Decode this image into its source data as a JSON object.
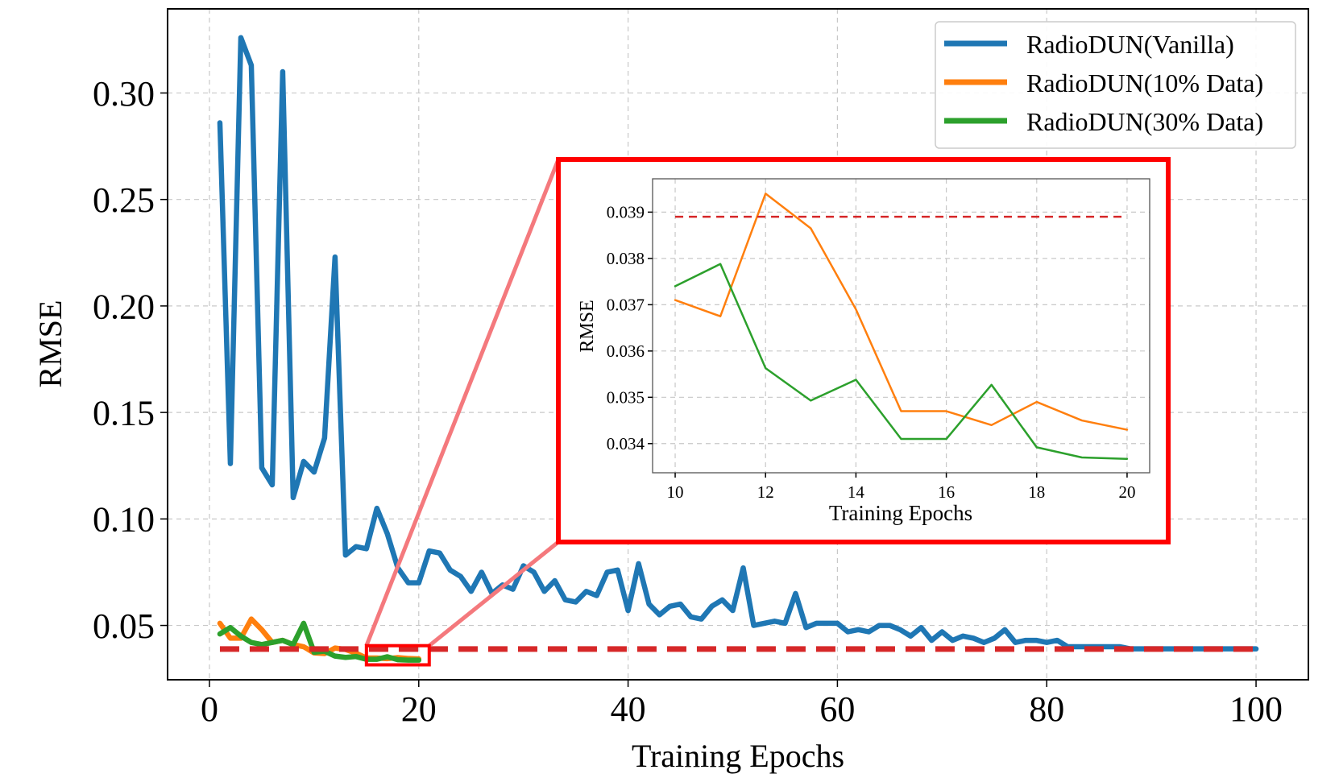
{
  "colors": {
    "vanilla": "#1f77b4",
    "p10": "#ff7f0e",
    "p30": "#2ca02c",
    "reference": "#d62728",
    "zoom_box": "#ff0000",
    "connector": "#f4797d",
    "grid": "#c8c8c8"
  },
  "chart_data": [
    {
      "type": "line",
      "id": "main",
      "xlabel": "Training Epochs",
      "ylabel": "RMSE",
      "xlim": [
        -4,
        105
      ],
      "ylim": [
        0.0245,
        0.3395
      ],
      "xticks": [
        0,
        20,
        40,
        60,
        80,
        100
      ],
      "xtick_labels": [
        "0",
        "20",
        "40",
        "60",
        "80",
        "100"
      ],
      "yticks": [
        0.05,
        0.1,
        0.15,
        0.2,
        0.25,
        0.3
      ],
      "ytick_labels": [
        "0.05",
        "0.10",
        "0.15",
        "0.20",
        "0.25",
        "0.30"
      ],
      "grid": true,
      "legend_position": "top-right",
      "reference_line": {
        "y": 0.0389,
        "x": [
          1,
          100
        ],
        "style": "dashed"
      },
      "zoom_region": {
        "x": [
          15,
          21
        ],
        "y": [
          0.0315,
          0.0405
        ]
      },
      "series": [
        {
          "name": "RadioDUN(Vanilla)",
          "key": "vanilla",
          "x": [
            1,
            2,
            3,
            4,
            5,
            6,
            7,
            8,
            9,
            10,
            11,
            12,
            13,
            14,
            15,
            16,
            17,
            18,
            19,
            20,
            21,
            22,
            23,
            24,
            25,
            26,
            27,
            28,
            29,
            30,
            31,
            32,
            33,
            34,
            35,
            36,
            37,
            38,
            39,
            40,
            41,
            42,
            43,
            44,
            45,
            46,
            47,
            48,
            49,
            50,
            51,
            52,
            53,
            54,
            55,
            56,
            57,
            58,
            59,
            60,
            61,
            62,
            63,
            64,
            65,
            66,
            67,
            68,
            69,
            70,
            71,
            72,
            73,
            74,
            75,
            76,
            77,
            78,
            79,
            80,
            81,
            82,
            83,
            84,
            85,
            86,
            87,
            88,
            89,
            90,
            91,
            92,
            93,
            94,
            95,
            96,
            97,
            98,
            99,
            100
          ],
          "values": [
            0.286,
            0.126,
            0.326,
            0.313,
            0.124,
            0.116,
            0.31,
            0.11,
            0.127,
            0.122,
            0.138,
            0.223,
            0.083,
            0.087,
            0.086,
            0.105,
            0.093,
            0.077,
            0.07,
            0.07,
            0.085,
            0.084,
            0.076,
            0.073,
            0.066,
            0.075,
            0.065,
            0.069,
            0.067,
            0.078,
            0.075,
            0.066,
            0.071,
            0.062,
            0.061,
            0.066,
            0.064,
            0.075,
            0.076,
            0.057,
            0.079,
            0.06,
            0.055,
            0.059,
            0.06,
            0.054,
            0.053,
            0.059,
            0.062,
            0.057,
            0.077,
            0.05,
            0.051,
            0.052,
            0.051,
            0.065,
            0.049,
            0.051,
            0.051,
            0.051,
            0.047,
            0.048,
            0.047,
            0.05,
            0.05,
            0.048,
            0.045,
            0.049,
            0.043,
            0.047,
            0.043,
            0.045,
            0.044,
            0.042,
            0.044,
            0.048,
            0.042,
            0.043,
            0.043,
            0.042,
            0.043,
            0.04,
            0.04,
            0.04,
            0.04,
            0.04,
            0.04,
            0.039,
            0.039,
            0.039,
            0.039,
            0.039,
            0.039,
            0.039,
            0.039,
            0.039,
            0.039,
            0.039,
            0.039,
            0.039
          ]
        },
        {
          "name": "RadioDUN(10% Data)",
          "key": "p10",
          "x": [
            1,
            2,
            3,
            4,
            5,
            6,
            7,
            8,
            9,
            10,
            11,
            12,
            13,
            14,
            15,
            16,
            17,
            18,
            19,
            20
          ],
          "values": [
            0.051,
            0.044,
            0.044,
            0.053,
            0.048,
            0.042,
            0.043,
            0.041,
            0.04,
            0.0371,
            0.0368,
            0.0394,
            0.0387,
            0.037,
            0.0347,
            0.0347,
            0.0344,
            0.0349,
            0.0345,
            0.0343
          ]
        },
        {
          "name": "RadioDUN(30% Data)",
          "key": "p30",
          "x": [
            1,
            2,
            3,
            4,
            5,
            6,
            7,
            8,
            9,
            10,
            11,
            12,
            13,
            14,
            15,
            16,
            17,
            18,
            19,
            20
          ],
          "values": [
            0.046,
            0.049,
            0.045,
            0.042,
            0.041,
            0.042,
            0.043,
            0.041,
            0.051,
            0.0374,
            0.0379,
            0.0356,
            0.035,
            0.0354,
            0.0341,
            0.0341,
            0.0353,
            0.0339,
            0.0337,
            0.0337
          ]
        }
      ]
    },
    {
      "type": "line",
      "id": "inset",
      "xlabel": "Training Epochs",
      "ylabel": "RMSE",
      "xlim": [
        9.5,
        20.5
      ],
      "ylim": [
        0.03337,
        0.03972
      ],
      "xticks": [
        10,
        12,
        14,
        16,
        18,
        20
      ],
      "xtick_labels": [
        "10",
        "12",
        "14",
        "16",
        "18",
        "20"
      ],
      "yticks": [
        0.034,
        0.035,
        0.036,
        0.037,
        0.038,
        0.039
      ],
      "ytick_labels": [
        "0.034",
        "0.035",
        "0.036",
        "0.037",
        "0.038",
        "0.039"
      ],
      "grid": true,
      "reference_line": {
        "y": 0.0389,
        "x": [
          10,
          20
        ],
        "style": "dashed"
      },
      "series": [
        {
          "name": "RadioDUN(10% Data)",
          "key": "p10",
          "x": [
            10,
            11,
            12,
            13,
            14,
            15,
            16,
            17,
            18,
            19,
            20
          ],
          "values": [
            0.0371,
            0.03675,
            0.0394,
            0.03865,
            0.0369,
            0.0347,
            0.0347,
            0.0344,
            0.0349,
            0.0345,
            0.0343
          ]
        },
        {
          "name": "RadioDUN(30% Data)",
          "key": "p30",
          "x": [
            10,
            11,
            12,
            13,
            14,
            15,
            16,
            17,
            18,
            19,
            20
          ],
          "values": [
            0.0374,
            0.03788,
            0.03563,
            0.03493,
            0.03538,
            0.0341,
            0.0341,
            0.03527,
            0.03392,
            0.0337,
            0.03367
          ]
        }
      ]
    }
  ]
}
